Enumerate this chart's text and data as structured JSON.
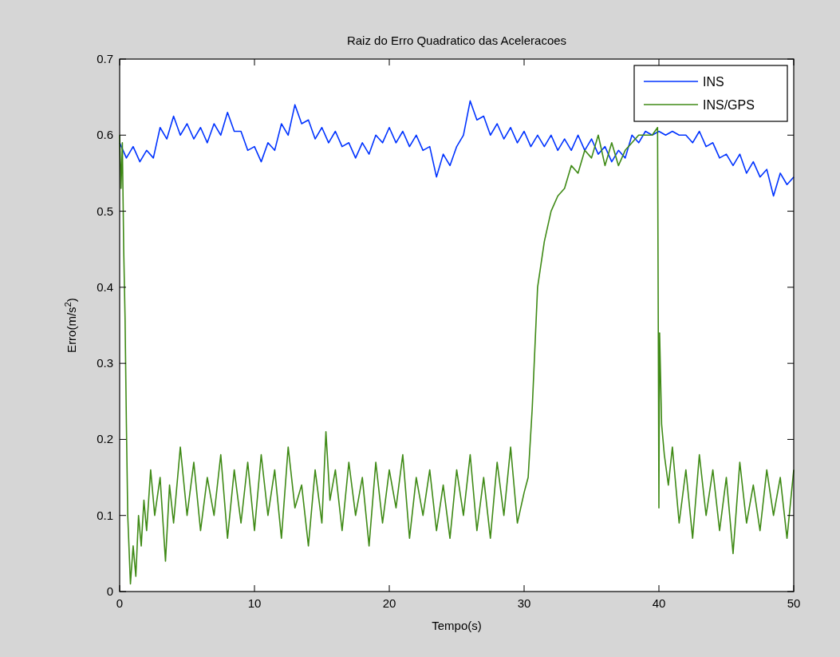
{
  "chart_data": {
    "type": "line",
    "title": "Raiz do Erro Quadratico das Aceleracoes",
    "xlabel": "Tempo(s)",
    "ylabel": "Erro(m/s$^{2}$)",
    "xlim": [
      0,
      50
    ],
    "xticks": [
      0,
      10,
      20,
      30,
      40,
      50
    ],
    "ylim": [
      0,
      0.7
    ],
    "yticks": [
      0,
      0.1,
      0.2,
      0.3,
      0.4,
      0.5,
      0.6,
      0.7
    ],
    "legend": "top right",
    "series": [
      {
        "name": "INS",
        "color": "#0033ff",
        "x": [
          0,
          0.5,
          1,
          1.5,
          2,
          2.5,
          3,
          3.5,
          4,
          4.5,
          5,
          5.5,
          6,
          6.5,
          7,
          7.5,
          8,
          8.5,
          9,
          9.5,
          10,
          10.5,
          11,
          11.5,
          12,
          12.5,
          13,
          13.5,
          14,
          14.5,
          15,
          15.5,
          16,
          16.5,
          17,
          17.5,
          18,
          18.5,
          19,
          19.5,
          20,
          20.5,
          21,
          21.5,
          22,
          22.5,
          23,
          23.5,
          24,
          24.5,
          25,
          25.5,
          26,
          26.5,
          27,
          27.5,
          28,
          28.5,
          29,
          29.5,
          30,
          30.5,
          31,
          31.5,
          32,
          32.5,
          33,
          33.5,
          34,
          34.5,
          35,
          35.5,
          36,
          36.5,
          37,
          37.5,
          38,
          38.5,
          39,
          39.5,
          40,
          40.5,
          41,
          41.5,
          42,
          42.5,
          43,
          43.5,
          44,
          44.5,
          45,
          45.5,
          46,
          46.5,
          47,
          47.5,
          48,
          48.5,
          49,
          49.5,
          50
        ],
        "values": [
          0.59,
          0.57,
          0.585,
          0.565,
          0.58,
          0.57,
          0.61,
          0.595,
          0.625,
          0.6,
          0.615,
          0.595,
          0.61,
          0.59,
          0.615,
          0.6,
          0.63,
          0.605,
          0.605,
          0.58,
          0.585,
          0.565,
          0.59,
          0.58,
          0.615,
          0.6,
          0.64,
          0.615,
          0.62,
          0.595,
          0.61,
          0.59,
          0.605,
          0.585,
          0.59,
          0.57,
          0.59,
          0.575,
          0.6,
          0.59,
          0.61,
          0.59,
          0.605,
          0.585,
          0.6,
          0.58,
          0.585,
          0.545,
          0.575,
          0.56,
          0.585,
          0.6,
          0.645,
          0.62,
          0.625,
          0.6,
          0.615,
          0.595,
          0.61,
          0.59,
          0.605,
          0.585,
          0.6,
          0.585,
          0.6,
          0.58,
          0.595,
          0.58,
          0.6,
          0.58,
          0.595,
          0.575,
          0.585,
          0.565,
          0.58,
          0.57,
          0.6,
          0.59,
          0.605,
          0.6,
          0.605,
          0.6,
          0.605,
          0.6,
          0.6,
          0.59,
          0.605,
          0.585,
          0.59,
          0.57,
          0.575,
          0.56,
          0.575,
          0.55,
          0.565,
          0.545,
          0.555,
          0.52,
          0.55,
          0.535,
          0.545
        ]
      },
      {
        "name": "INS/GPS",
        "color": "#3f8a16",
        "x": [
          0,
          0.1,
          0.2,
          0.3,
          0.4,
          0.5,
          0.6,
          0.8,
          1,
          1.2,
          1.4,
          1.6,
          1.8,
          2,
          2.3,
          2.6,
          3,
          3.4,
          3.7,
          4,
          4.5,
          5,
          5.5,
          6,
          6.5,
          7,
          7.5,
          8,
          8.5,
          9,
          9.5,
          10,
          10.5,
          11,
          11.5,
          12,
          12.5,
          13,
          13.5,
          14,
          14.5,
          15,
          15.3,
          15.6,
          16,
          16.5,
          17,
          17.5,
          18,
          18.5,
          19,
          19.5,
          20,
          20.5,
          21,
          21.5,
          22,
          22.5,
          23,
          23.5,
          24,
          24.5,
          25,
          25.5,
          26,
          26.5,
          27,
          27.5,
          28,
          28.5,
          29,
          29.5,
          30,
          30.3,
          30.6,
          31,
          31.5,
          32,
          32.5,
          33,
          33.5,
          34,
          34.5,
          35,
          35.5,
          36,
          36.5,
          37,
          37.5,
          38,
          38.5,
          39,
          39.5,
          39.9,
          40,
          40.05,
          40.2,
          40.4,
          40.7,
          41,
          41.5,
          42,
          42.5,
          43,
          43.5,
          44,
          44.5,
          45,
          45.5,
          46,
          46.5,
          47,
          47.5,
          48,
          48.5,
          49,
          49.5,
          50
        ],
        "values": [
          0.6,
          0.53,
          0.59,
          0.45,
          0.36,
          0.22,
          0.1,
          0.01,
          0.06,
          0.02,
          0.1,
          0.06,
          0.12,
          0.08,
          0.16,
          0.1,
          0.15,
          0.04,
          0.14,
          0.09,
          0.19,
          0.1,
          0.17,
          0.08,
          0.15,
          0.1,
          0.18,
          0.07,
          0.16,
          0.09,
          0.17,
          0.08,
          0.18,
          0.1,
          0.16,
          0.07,
          0.19,
          0.11,
          0.14,
          0.06,
          0.16,
          0.09,
          0.21,
          0.12,
          0.16,
          0.08,
          0.17,
          0.1,
          0.15,
          0.06,
          0.17,
          0.09,
          0.16,
          0.11,
          0.18,
          0.07,
          0.15,
          0.1,
          0.16,
          0.08,
          0.14,
          0.07,
          0.16,
          0.1,
          0.18,
          0.08,
          0.15,
          0.07,
          0.17,
          0.1,
          0.19,
          0.09,
          0.13,
          0.15,
          0.24,
          0.4,
          0.46,
          0.5,
          0.52,
          0.53,
          0.56,
          0.55,
          0.58,
          0.57,
          0.6,
          0.56,
          0.59,
          0.56,
          0.58,
          0.59,
          0.6,
          0.6,
          0.6,
          0.61,
          0.11,
          0.34,
          0.22,
          0.18,
          0.14,
          0.19,
          0.09,
          0.16,
          0.07,
          0.18,
          0.1,
          0.16,
          0.08,
          0.15,
          0.05,
          0.17,
          0.09,
          0.14,
          0.08,
          0.16,
          0.1,
          0.15,
          0.07,
          0.16
        ]
      }
    ]
  }
}
